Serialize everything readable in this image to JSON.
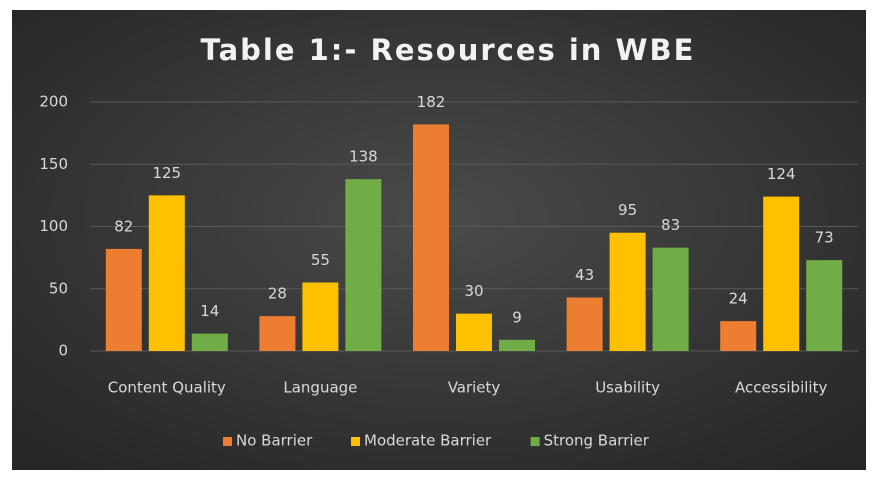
{
  "chart_data": {
    "type": "bar",
    "title": "Table 1:- Resources in WBE",
    "categories": [
      "Content Quality",
      "Language",
      "Variety",
      "Usability",
      "Accessibility"
    ],
    "series": [
      {
        "name": "No Barrier",
        "color": "#ed7d31",
        "values": [
          82,
          28,
          182,
          43,
          24
        ]
      },
      {
        "name": "Moderate Barrier",
        "color": "#ffc000",
        "values": [
          125,
          55,
          30,
          95,
          124
        ]
      },
      {
        "name": "Strong Barrier",
        "color": "#70ad47",
        "values": [
          14,
          138,
          9,
          83,
          73
        ]
      }
    ],
    "ylim": [
      0,
      200
    ],
    "yticks": [
      0,
      50,
      100,
      150,
      200
    ],
    "grid": true,
    "legend": "bottom"
  }
}
